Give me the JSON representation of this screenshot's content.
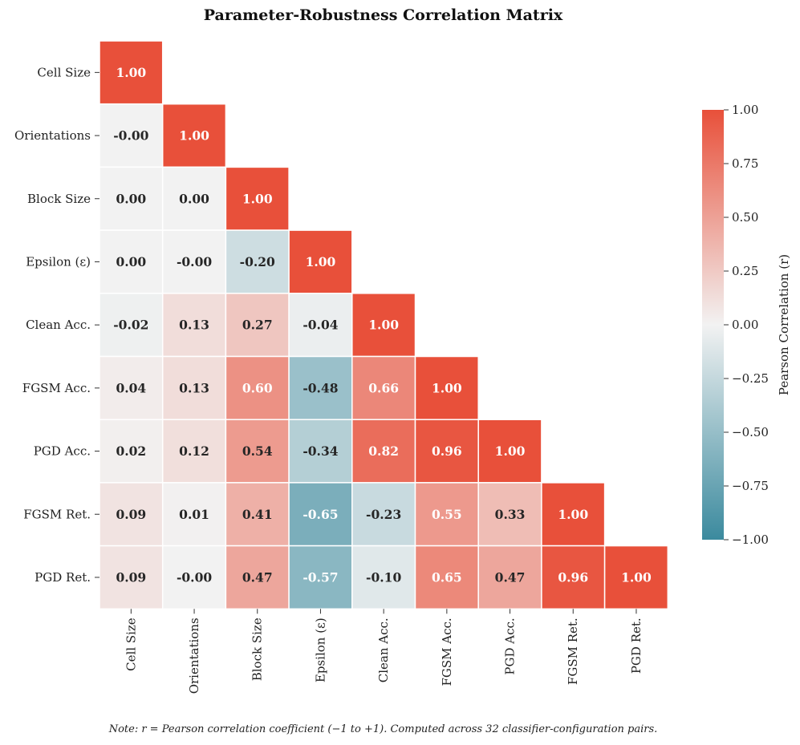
{
  "chart_data": {
    "type": "heatmap",
    "title": "Parameter-Robustness Correlation Matrix",
    "variables": [
      "Cell Size",
      "Orientations",
      "Block Size",
      "Epsilon (ε)",
      "Clean Acc.",
      "FGSM Acc.",
      "PGD Acc.",
      "FGSM Ret.",
      "PGD Ret."
    ],
    "values": [
      [
        1.0
      ],
      [
        -0.0,
        1.0
      ],
      [
        0.0,
        0.0,
        1.0
      ],
      [
        0.0,
        -0.0,
        -0.2,
        1.0
      ],
      [
        -0.02,
        0.13,
        0.27,
        -0.04,
        1.0
      ],
      [
        0.04,
        0.13,
        0.6,
        -0.48,
        0.66,
        1.0
      ],
      [
        0.02,
        0.12,
        0.54,
        -0.34,
        0.82,
        0.96,
        1.0
      ],
      [
        0.09,
        0.01,
        0.41,
        -0.65,
        -0.23,
        0.55,
        0.33,
        1.0
      ],
      [
        0.09,
        -0.0,
        0.47,
        -0.57,
        -0.1,
        0.65,
        0.47,
        0.96,
        1.0
      ]
    ],
    "value_labels": [
      [
        "1.00"
      ],
      [
        "-0.00",
        "1.00"
      ],
      [
        "0.00",
        "0.00",
        "1.00"
      ],
      [
        "0.00",
        "-0.00",
        "-0.20",
        "1.00"
      ],
      [
        "-0.02",
        "0.13",
        "0.27",
        "-0.04",
        "1.00"
      ],
      [
        "0.04",
        "0.13",
        "0.60",
        "-0.48",
        "0.66",
        "1.00"
      ],
      [
        "0.02",
        "0.12",
        "0.54",
        "-0.34",
        "0.82",
        "0.96",
        "1.00"
      ],
      [
        "0.09",
        "0.01",
        "0.41",
        "-0.65",
        "-0.23",
        "0.55",
        "0.33",
        "1.00"
      ],
      [
        "0.09",
        "-0.00",
        "0.47",
        "-0.57",
        "-0.10",
        "0.65",
        "0.47",
        "0.96",
        "1.00"
      ]
    ],
    "mask": "upper-triangle",
    "colorbar": {
      "label": "Pearson Correlation (r)",
      "range": [
        -1,
        1
      ],
      "ticks": [
        1.0,
        0.75,
        0.5,
        0.25,
        0.0,
        -0.25,
        -0.5,
        -0.75,
        -1.0
      ],
      "tick_labels": [
        "1.00",
        "0.75",
        "0.50",
        "0.25",
        "0.00",
        "−0.25",
        "−0.50",
        "−0.75",
        "−1.00"
      ],
      "colors": {
        "negative": "#3b8a9e",
        "center": "#f2f2f2",
        "positive": "#e8503a"
      },
      "position": "right"
    }
  },
  "note": "Note: r = Pearson correlation coefficient (−1 to +1). Computed across 32 classifier-configuration pairs."
}
